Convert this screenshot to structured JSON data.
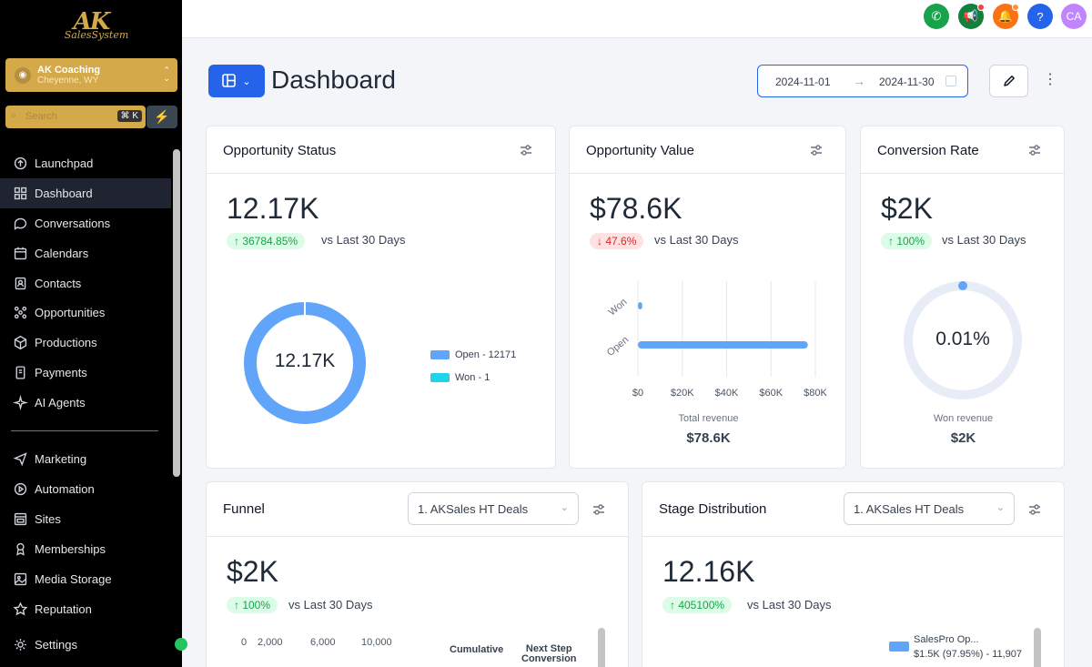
{
  "logo": {
    "main": "AK",
    "sub": "SalesSystem"
  },
  "account": {
    "name": "AK Coaching",
    "location": "Cheyenne, WY"
  },
  "search": {
    "placeholder": "Search",
    "shortcut": "⌘ K"
  },
  "sidebar": {
    "items": [
      {
        "label": "Launchpad",
        "icon": "rocket-icon"
      },
      {
        "label": "Dashboard",
        "icon": "grid-icon",
        "active": true
      },
      {
        "label": "Conversations",
        "icon": "chat-icon"
      },
      {
        "label": "Calendars",
        "icon": "calendar-icon"
      },
      {
        "label": "Contacts",
        "icon": "contacts-icon"
      },
      {
        "label": "Opportunities",
        "icon": "opportunities-icon"
      },
      {
        "label": "Productions",
        "icon": "box-icon"
      },
      {
        "label": "Payments",
        "icon": "payments-icon"
      },
      {
        "label": "AI Agents",
        "icon": "sparkle-icon"
      },
      {
        "label": "Marketing",
        "icon": "send-icon"
      },
      {
        "label": "Automation",
        "icon": "automation-icon"
      },
      {
        "label": "Sites",
        "icon": "sites-icon"
      },
      {
        "label": "Memberships",
        "icon": "memberships-icon"
      },
      {
        "label": "Media Storage",
        "icon": "media-icon"
      },
      {
        "label": "Reputation",
        "icon": "star-icon"
      },
      {
        "label": "Settings",
        "icon": "gear-icon"
      }
    ]
  },
  "topbar": {
    "buttons": [
      {
        "name": "phone-icon",
        "color": "#16a34a",
        "glyph": "✆"
      },
      {
        "name": "megaphone-icon",
        "color": "#15803d",
        "glyph": "📢"
      },
      {
        "name": "bell-icon",
        "color": "#f97316",
        "glyph": "🔔"
      },
      {
        "name": "help-icon",
        "color": "#2563eb",
        "glyph": "?"
      },
      {
        "name": "user-avatar",
        "color": "#c084fc",
        "glyph": "CA"
      }
    ]
  },
  "header": {
    "title": "Dashboard",
    "date_from": "2024-11-01",
    "date_to": "2024-11-30"
  },
  "opportunity_status": {
    "title": "Opportunity Status",
    "value": "12.17K",
    "change": "↑ 36784.85%",
    "vs": "vs Last 30 Days",
    "center": "12.17K",
    "legend": [
      {
        "label": "Open - 12171",
        "color": "#60a5fa"
      },
      {
        "label": "Won - 1",
        "color": "#22d3ee"
      }
    ]
  },
  "opportunity_value": {
    "title": "Opportunity Value",
    "value": "$78.6K",
    "change": "↓ 47.6%",
    "vs": "vs Last 30 Days",
    "footer_label": "Total revenue",
    "footer_value": "$78.6K"
  },
  "conversion_rate": {
    "title": "Conversion Rate",
    "value": "$2K",
    "change": "↑ 100%",
    "vs": "vs Last 30 Days",
    "center": "0.01%",
    "footer_label": "Won revenue",
    "footer_value": "$2K"
  },
  "funnel": {
    "title": "Funnel",
    "select": "1. AKSales HT Deals",
    "value": "$2K",
    "change": "↑ 100%",
    "vs": "vs Last 30 Days",
    "ticks": [
      "0",
      "2,000",
      "6,000",
      "10,000"
    ],
    "col1": "Cumulative",
    "col2a": "Next Step",
    "col2b": "Conversion"
  },
  "stage_distribution": {
    "title": "Stage Distribution",
    "select": "1. AKSales HT Deals",
    "value": "12.16K",
    "change": "↑ 405100%",
    "vs": "vs Last 30 Days",
    "legend_title": "SalesPro Op...",
    "legend_value": "$1.5K (97.95%) - 11,907",
    "legend_color": "#60a5fa"
  },
  "chart_data": [
    {
      "type": "pie",
      "title": "",
      "categories": [
        "Open",
        "Won"
      ],
      "values": [
        12171,
        1
      ],
      "colors": [
        "#60a5fa",
        "#22d3ee"
      ]
    },
    {
      "type": "bar",
      "orientation": "horizontal",
      "categories": [
        "Won",
        "Open"
      ],
      "values": [
        2000,
        76600
      ],
      "xlabel": "Total revenue",
      "ticks": [
        "$0",
        "$20K",
        "$40K",
        "$60K",
        "$80K"
      ],
      "xlim": [
        0,
        80000
      ],
      "grid": true
    }
  ]
}
